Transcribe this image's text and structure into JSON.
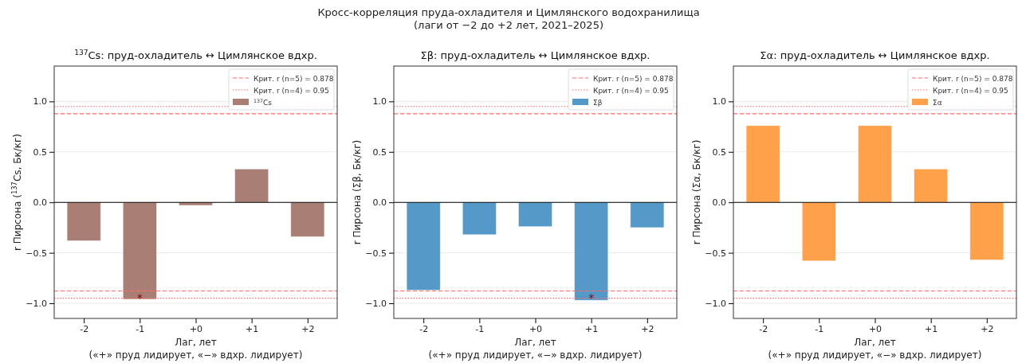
{
  "chart_data": [
    {
      "type": "bar",
      "title": "$^{137}$Cs: пруд-охладитель ↔ Цимлянское вдхр.",
      "xlabel": "Лаг, лет\n(«+» пруд лидирует, «−» вдхр. лидирует)",
      "ylabel": "r Пирсона ($^{137}$Cs, Бк/кг)",
      "categories": [
        "-2",
        "-1",
        "+0",
        "+1",
        "+2"
      ],
      "series": [
        {
          "name": "$^{137}$Cs",
          "color": "#a97f75",
          "values": [
            -0.38,
            -0.96,
            -0.03,
            0.33,
            -0.34
          ]
        }
      ],
      "ylim": [
        -1.15,
        1.35
      ],
      "yticks": [
        {
          "value": -1,
          "label": "−1.0"
        },
        {
          "value": -0.5,
          "label": "−0.5"
        },
        {
          "value": 0,
          "label": "0.0"
        },
        {
          "value": 0.5,
          "label": "0.5"
        },
        {
          "value": 1,
          "label": "1.0"
        }
      ],
      "ref_lines": [
        {
          "axis": "y",
          "value": 0,
          "color": "#000000",
          "line_style": "solid"
        },
        {
          "axis": "y",
          "value": 0.878,
          "label": "Крит. r (n=5) = 0.878",
          "color": "#ff6b6b",
          "line_style": "dashed"
        },
        {
          "axis": "y",
          "value": -0.878,
          "color": "#ff6b6b",
          "line_style": "dashed"
        },
        {
          "axis": "y",
          "value": 0.95,
          "label": "Крит. r (n=4) = 0.95",
          "color": "#ff6b6b",
          "line_style": "dotted"
        },
        {
          "axis": "y",
          "value": -0.95,
          "color": "#ff6b6b",
          "line_style": "dotted"
        }
      ],
      "annotations": [
        "Кросс-корреляция пруда-охладителя и Цимлянского водохранилища",
        "(лаги от −2 до +2 лет, 2021–2025)",
        {
          "text": "*",
          "x": "-1",
          "y": -0.94
        }
      ],
      "grid": "y",
      "legend": "top right"
    },
    {
      "type": "bar",
      "title": "Σβ: пруд-охладитель ↔ Цимлянское вдхр.",
      "xlabel": "Лаг, лет\n(«+» пруд лидирует, «−» вдхр. лидирует)",
      "ylabel": "r Пирсона (Σβ, Бк/кг)",
      "categories": [
        "-2",
        "-1",
        "+0",
        "+1",
        "+2"
      ],
      "series": [
        {
          "name": "Σβ",
          "color": "#5499c7",
          "values": [
            -0.87,
            -0.32,
            -0.24,
            -0.97,
            -0.25
          ]
        }
      ],
      "ylim": [
        -1.15,
        1.35
      ],
      "yticks": [
        {
          "value": -1,
          "label": "−1.0"
        },
        {
          "value": -0.5,
          "label": "−0.5"
        },
        {
          "value": 0,
          "label": "0.0"
        },
        {
          "value": 0.5,
          "label": "0.5"
        },
        {
          "value": 1,
          "label": "1.0"
        }
      ],
      "ref_lines": [
        {
          "axis": "y",
          "value": 0,
          "color": "#000000",
          "line_style": "solid"
        },
        {
          "axis": "y",
          "value": 0.878,
          "label": "Крит. r (n=5) = 0.878",
          "color": "#ff6b6b",
          "line_style": "dashed"
        },
        {
          "axis": "y",
          "value": -0.878,
          "color": "#ff6b6b",
          "line_style": "dashed"
        },
        {
          "axis": "y",
          "value": 0.95,
          "label": "Крит. r (n=4) = 0.95",
          "color": "#ff6b6b",
          "line_style": "dotted"
        },
        {
          "axis": "y",
          "value": -0.95,
          "color": "#ff6b6b",
          "line_style": "dotted"
        }
      ],
      "annotations": [
        {
          "text": "*",
          "x": "+1",
          "y": -0.94
        }
      ],
      "grid": "y",
      "legend": "top right"
    },
    {
      "type": "bar",
      "title": "Σα: пруд-охладитель ↔ Цимлянское вдхр.",
      "xlabel": "Лаг, лет\n(«+» пруд лидирует, «−» вдхр. лидирует)",
      "ylabel": "r Пирсона (Σα, Бк/кг)",
      "categories": [
        "-2",
        "-1",
        "+0",
        "+1",
        "+2"
      ],
      "series": [
        {
          "name": "Σα",
          "color": "#ffa04a",
          "values": [
            0.76,
            -0.58,
            0.76,
            0.33,
            -0.57
          ]
        }
      ],
      "ylim": [
        -1.15,
        1.35
      ],
      "yticks": [
        {
          "value": -1,
          "label": "−1.0"
        },
        {
          "value": -0.5,
          "label": "−0.5"
        },
        {
          "value": 0,
          "label": "0.0"
        },
        {
          "value": 0.5,
          "label": "0.5"
        },
        {
          "value": 1,
          "label": "1.0"
        }
      ],
      "ref_lines": [
        {
          "axis": "y",
          "value": 0,
          "color": "#000000",
          "line_style": "solid"
        },
        {
          "axis": "y",
          "value": 0.878,
          "label": "Крит. r (n=5) = 0.878",
          "color": "#ff6b6b",
          "line_style": "dashed"
        },
        {
          "axis": "y",
          "value": -0.878,
          "color": "#ff6b6b",
          "line_style": "dashed"
        },
        {
          "axis": "y",
          "value": 0.95,
          "label": "Крит. r (n=4) = 0.95",
          "color": "#ff6b6b",
          "line_style": "dotted"
        },
        {
          "axis": "y",
          "value": -0.95,
          "color": "#ff6b6b",
          "line_style": "dotted"
        }
      ],
      "grid": "y",
      "legend": "top right"
    }
  ]
}
